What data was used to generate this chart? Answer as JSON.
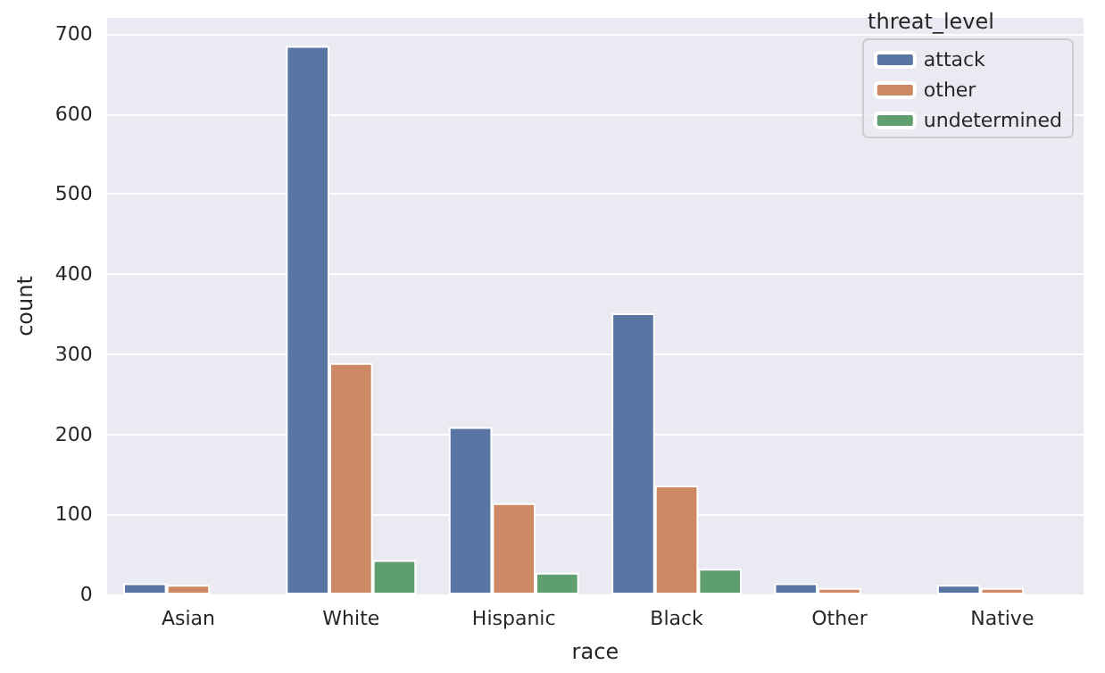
{
  "chart_data": {
    "type": "bar",
    "xlabel": "race",
    "ylabel": "count",
    "legend_title": "threat_level",
    "categories": [
      "Asian",
      "White",
      "Hispanic",
      "Black",
      "Other",
      "Native"
    ],
    "series": [
      {
        "name": "attack",
        "color": "#5975a4",
        "values": [
          14,
          685,
          209,
          351,
          14,
          12
        ]
      },
      {
        "name": "other",
        "color": "#cc8963",
        "values": [
          12,
          289,
          114,
          136,
          8,
          8
        ]
      },
      {
        "name": "undetermined",
        "color": "#5f9e6e",
        "values": [
          null,
          43,
          27,
          32,
          null,
          null
        ]
      }
    ],
    "ylim": [
      0,
      720
    ],
    "yticks": [
      0,
      100,
      200,
      300,
      400,
      500,
      600,
      700
    ],
    "grid": "y",
    "legend": "top right"
  }
}
